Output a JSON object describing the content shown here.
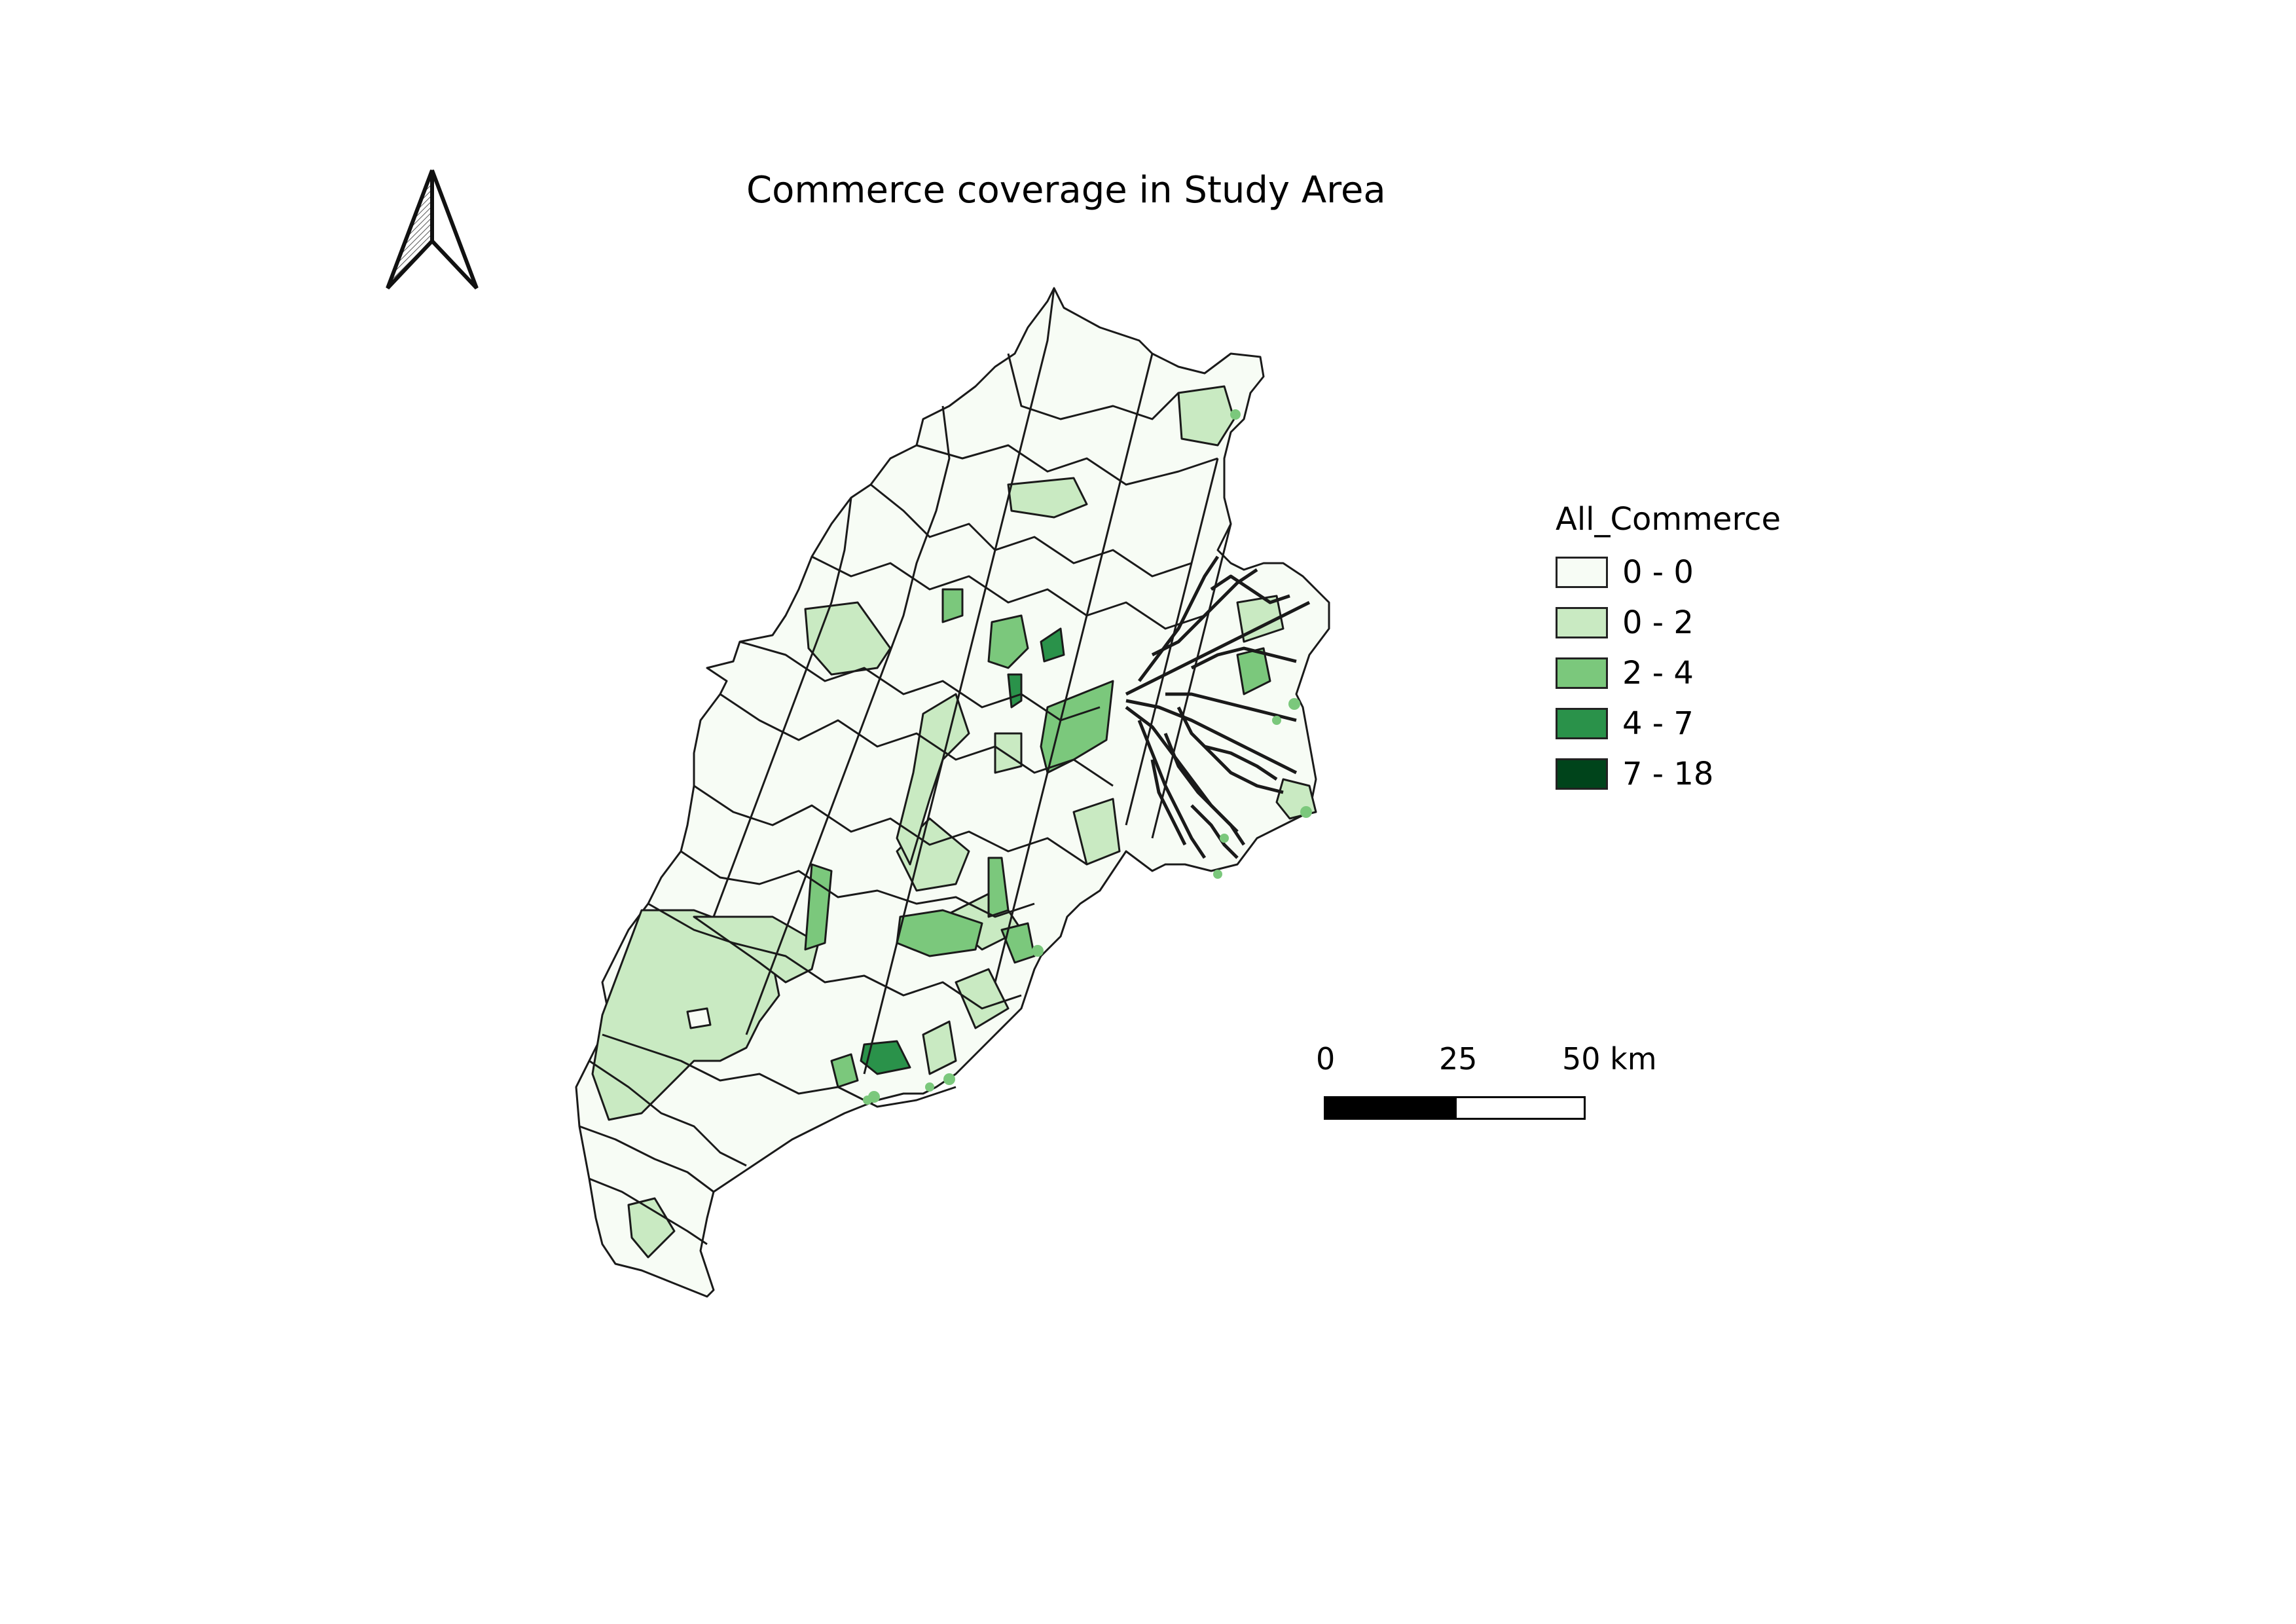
{
  "map": {
    "title": "Commerce coverage in Study Area",
    "outline_color": "#1a1a1a",
    "classes": [
      {
        "label": "0 - 0",
        "color": "#f7fcf5"
      },
      {
        "label": "0 - 2",
        "color": "#c9eac2"
      },
      {
        "label": "2 - 4",
        "color": "#7bc87c"
      },
      {
        "label": "4 - 7",
        "color": "#2a924a"
      },
      {
        "label": "7 - 18",
        "color": "#00441b"
      }
    ]
  },
  "legend": {
    "title": "All_Commerce"
  },
  "scale_bar": {
    "labels": [
      "0",
      "25",
      "50 km"
    ]
  },
  "north_arrow": {
    "icon": "north-arrow-icon"
  }
}
